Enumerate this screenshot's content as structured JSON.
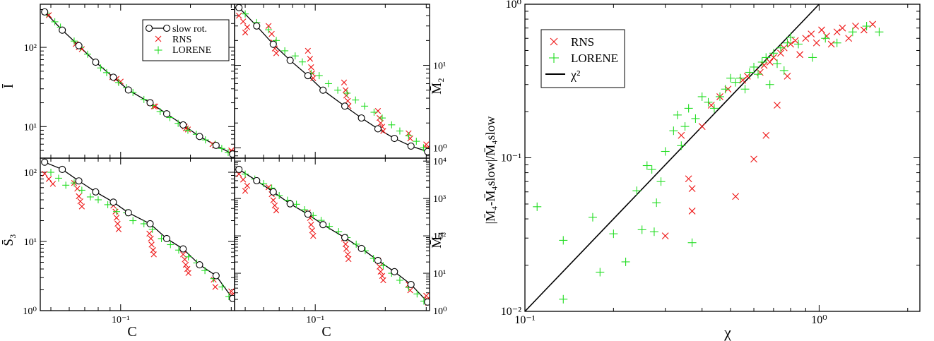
{
  "legend_left": {
    "slow": "slow rot.",
    "rns": "RNS",
    "lorene": "LORENE"
  },
  "legend_right": {
    "rns": "RNS",
    "lorene": "LORENE",
    "chi2": "χ²"
  },
  "colors": {
    "rns": "#ee1111",
    "lorene": "#22dd22",
    "curve": "#000000"
  },
  "chart_data": [
    {
      "type": "scatter",
      "panel": "top-left",
      "ylabel": "Ī",
      "xlabel": "",
      "xscale": "log",
      "yscale": "log",
      "xlim": [
        0.045,
        0.31
      ],
      "ylim": [
        4,
        350
      ],
      "yticks": [
        {
          "v": 10,
          "t": "10¹"
        },
        {
          "v": 100,
          "t": "10²"
        }
      ],
      "slow": {
        "x": [
          0.047,
          0.056,
          0.066,
          0.078,
          0.093,
          0.108,
          0.134,
          0.158,
          0.186,
          0.219,
          0.258,
          0.304
        ],
        "y": [
          280,
          165,
          105,
          65,
          42,
          29,
          20,
          14.5,
          10.5,
          7.5,
          5.8,
          4.5
        ]
      },
      "rns": {
        "x": [
          0.049,
          0.064,
          0.066,
          0.068,
          0.092,
          0.096,
          0.1,
          0.134,
          0.139,
          0.141,
          0.189,
          0.191,
          0.195,
          0.249,
          0.255,
          0.3,
          0.302,
          0.306
        ],
        "y": [
          255,
          110,
          100,
          95,
          42,
          40,
          37,
          20,
          18,
          18,
          10,
          9.5,
          9.2,
          6,
          5.8,
          5,
          4.8,
          4.6
        ]
      },
      "lorene": {
        "x": [
          0.048,
          0.052,
          0.055,
          0.063,
          0.067,
          0.072,
          0.082,
          0.087,
          0.098,
          0.106,
          0.113,
          0.126,
          0.137,
          0.148,
          0.163,
          0.177,
          0.195,
          0.212,
          0.232,
          0.256,
          0.273,
          0.291
        ],
        "y": [
          270,
          210,
          180,
          120,
          100,
          82,
          55,
          48,
          36,
          31,
          27,
          22,
          18.5,
          15.5,
          13,
          11,
          9,
          8,
          6.8,
          6,
          5.3,
          4.7
        ]
      }
    },
    {
      "type": "scatter",
      "panel": "top-right",
      "ylabel": "M̄₂",
      "xlabel": "",
      "xscale": "log",
      "yscale": "log",
      "xlim": [
        0.045,
        0.31
      ],
      "ylim": [
        0.75,
        55
      ],
      "yticks": [
        {
          "v": 1,
          "t": "10⁰"
        },
        {
          "v": 10,
          "t": "10¹"
        }
      ],
      "slow": {
        "x": [
          0.047,
          0.056,
          0.066,
          0.078,
          0.093,
          0.108,
          0.134,
          0.158,
          0.186,
          0.219,
          0.258,
          0.304
        ],
        "y": [
          50,
          30,
          18,
          11.5,
          7.5,
          5,
          3.2,
          2.3,
          1.7,
          1.3,
          1.05,
          0.9
        ]
      },
      "rns": {
        "x": [
          0.047,
          0.049,
          0.051,
          0.05,
          0.063,
          0.065,
          0.066,
          0.067,
          0.068,
          0.093,
          0.095,
          0.096,
          0.097,
          0.098,
          0.133,
          0.135,
          0.136,
          0.138,
          0.139,
          0.186,
          0.189,
          0.191,
          0.194,
          0.196,
          0.252,
          0.256,
          0.3,
          0.303,
          0.306
        ],
        "y": [
          40,
          34,
          29,
          25,
          30,
          24,
          19,
          16,
          14,
          15,
          12,
          9.5,
          8,
          7,
          6.2,
          5,
          4.3,
          3.7,
          3.2,
          2.8,
          2.3,
          2,
          1.8,
          1.6,
          1.5,
          1.3,
          1.1,
          1,
          0.95
        ]
      },
      "lorene": {
        "x": [
          0.05,
          0.056,
          0.063,
          0.068,
          0.074,
          0.082,
          0.088,
          0.096,
          0.104,
          0.114,
          0.125,
          0.137,
          0.149,
          0.163,
          0.179,
          0.194,
          0.213,
          0.231,
          0.252,
          0.272,
          0.292
        ],
        "y": [
          42,
          33,
          27,
          20,
          15,
          13,
          11,
          8,
          7.5,
          6,
          5,
          4.6,
          3.8,
          3.2,
          2.7,
          2.3,
          1.9,
          1.6,
          1.4,
          1.2,
          1.0
        ]
      }
    },
    {
      "type": "scatter",
      "panel": "bottom-left",
      "ylabel": "S̄₃",
      "xlabel": "C",
      "xscale": "log",
      "yscale": "log",
      "xlim": [
        0.045,
        0.31
      ],
      "ylim": [
        1,
        160
      ],
      "yticks": [
        {
          "v": 1,
          "t": "10⁰"
        },
        {
          "v": 10,
          "t": "10¹"
        },
        {
          "v": 100,
          "t": "10²"
        }
      ],
      "xticks": [
        {
          "v": 0.1,
          "t": "10⁻¹"
        }
      ],
      "slow": {
        "x": [
          0.047,
          0.056,
          0.066,
          0.078,
          0.093,
          0.108,
          0.134,
          0.158,
          0.186,
          0.219,
          0.258,
          0.304
        ],
        "y": [
          140,
          110,
          75,
          52,
          37,
          26,
          18,
          11,
          7.8,
          4.6,
          3.2,
          1.5
        ]
      },
      "rns": {
        "x": [
          0.047,
          0.049,
          0.051,
          0.063,
          0.065,
          0.066,
          0.067,
          0.068,
          0.093,
          0.095,
          0.096,
          0.097,
          0.098,
          0.133,
          0.135,
          0.136,
          0.138,
          0.139,
          0.186,
          0.189,
          0.191,
          0.194,
          0.196,
          0.252,
          0.256,
          0.3,
          0.303,
          0.306
        ],
        "y": [
          95,
          80,
          68,
          70,
          58,
          45,
          38,
          32,
          33,
          27,
          22,
          18,
          15,
          13,
          11,
          9,
          7.5,
          6.5,
          6.5,
          5.5,
          4.6,
          4,
          3.5,
          2.8,
          2.2,
          1.9,
          1.7,
          1.5
        ]
      },
      "lorene": {
        "x": [
          0.05,
          0.054,
          0.058,
          0.063,
          0.068,
          0.074,
          0.08,
          0.088,
          0.096,
          0.106,
          0.113,
          0.126,
          0.137,
          0.15,
          0.164,
          0.178,
          0.196,
          0.213,
          0.231,
          0.252,
          0.274,
          0.293
        ],
        "y": [
          100,
          82,
          65,
          70,
          55,
          44,
          40,
          34,
          27,
          26,
          20,
          18,
          15,
          11,
          9,
          7.5,
          6,
          4.9,
          3.8,
          2.9,
          2.2,
          1.6
        ]
      }
    },
    {
      "type": "scatter",
      "panel": "bottom-right",
      "ylabel": "M̄₄",
      "xlabel": "C",
      "xscale": "log",
      "yscale": "log",
      "xlim": [
        0.045,
        0.31
      ],
      "ylim": [
        1,
        12000
      ],
      "yticks": [
        {
          "v": 1,
          "t": "10⁰"
        },
        {
          "v": 10,
          "t": "10¹"
        },
        {
          "v": 100,
          "t": "10²"
        },
        {
          "v": 1000,
          "t": "10³"
        },
        {
          "v": 10000,
          "t": "10⁴"
        }
      ],
      "xticks": [
        {
          "v": 0.1,
          "t": "10⁻¹"
        }
      ],
      "slow": {
        "x": [
          0.047,
          0.056,
          0.066,
          0.078,
          0.093,
          0.108,
          0.134,
          0.158,
          0.186,
          0.219,
          0.258,
          0.304
        ],
        "y": [
          6000,
          3000,
          1500,
          720,
          380,
          200,
          90,
          46,
          22,
          11,
          5,
          1.7
        ]
      },
      "rns": {
        "x": [
          0.047,
          0.049,
          0.051,
          0.05,
          0.063,
          0.065,
          0.066,
          0.067,
          0.068,
          0.093,
          0.095,
          0.096,
          0.097,
          0.098,
          0.133,
          0.135,
          0.136,
          0.138,
          0.139,
          0.186,
          0.189,
          0.191,
          0.194,
          0.196,
          0.252,
          0.256,
          0.3,
          0.303,
          0.306
        ],
        "y": [
          4500,
          3200,
          2200,
          1600,
          2000,
          1300,
          900,
          650,
          480,
          420,
          300,
          200,
          140,
          100,
          85,
          60,
          45,
          32,
          24,
          22,
          15,
          11,
          8.5,
          6.5,
          5,
          3.5,
          2.5,
          2,
          1.6
        ]
      },
      "lorene": {
        "x": [
          0.05,
          0.055,
          0.06,
          0.065,
          0.07,
          0.076,
          0.083,
          0.09,
          0.098,
          0.106,
          0.115,
          0.126,
          0.137,
          0.15,
          0.164,
          0.178,
          0.196,
          0.213,
          0.231,
          0.252,
          0.274,
          0.293
        ],
        "y": [
          4500,
          3300,
          2500,
          1900,
          1200,
          900,
          700,
          500,
          350,
          260,
          180,
          130,
          90,
          60,
          40,
          25,
          16,
          10,
          6.5,
          4.2,
          2.8,
          1.8
        ]
      }
    },
    {
      "type": "scatter",
      "panel": "right",
      "ylabel": "|M̄₄-M̄₄slow|/M̄₄slow",
      "xlabel": "χ",
      "xscale": "log",
      "yscale": "log",
      "xlim": [
        0.1,
        2.2
      ],
      "ylim": [
        0.01,
        1
      ],
      "xticks": [
        {
          "v": 0.1,
          "t": "10⁻¹"
        },
        {
          "v": 1,
          "t": "10⁰"
        }
      ],
      "yticks": [
        {
          "v": 0.01,
          "t": "10⁻²"
        },
        {
          "v": 0.1,
          "t": "10⁻¹"
        },
        {
          "v": 1,
          "t": "10⁰"
        }
      ],
      "chi2": {
        "x": [
          0.1,
          1.0
        ],
        "y": [
          0.01,
          1.0
        ]
      },
      "rns": {
        "x": [
          0.3,
          0.34,
          0.36,
          0.37,
          0.37,
          0.4,
          0.43,
          0.46,
          0.49,
          0.52,
          0.55,
          0.57,
          0.6,
          0.63,
          0.65,
          0.66,
          0.68,
          0.7,
          0.72,
          0.74,
          0.76,
          0.78,
          0.8,
          0.83,
          0.86,
          0.9,
          0.94,
          0.98,
          1.02,
          1.06,
          1.1,
          1.15,
          1.2,
          1.26,
          1.33,
          1.42,
          1.52
        ],
        "y": [
          0.031,
          0.14,
          0.073,
          0.063,
          0.045,
          0.16,
          0.22,
          0.25,
          0.28,
          0.056,
          0.32,
          0.34,
          0.098,
          0.36,
          0.4,
          0.14,
          0.42,
          0.45,
          0.22,
          0.48,
          0.52,
          0.34,
          0.55,
          0.58,
          0.47,
          0.6,
          0.64,
          0.56,
          0.68,
          0.62,
          0.55,
          0.66,
          0.7,
          0.6,
          0.72,
          0.68,
          0.74
        ]
      },
      "lorene": {
        "x": [
          0.11,
          0.135,
          0.135,
          0.17,
          0.18,
          0.2,
          0.22,
          0.24,
          0.25,
          0.26,
          0.27,
          0.275,
          0.28,
          0.29,
          0.3,
          0.32,
          0.33,
          0.34,
          0.35,
          0.36,
          0.37,
          0.38,
          0.4,
          0.42,
          0.44,
          0.46,
          0.48,
          0.5,
          0.52,
          0.54,
          0.56,
          0.58,
          0.6,
          0.62,
          0.64,
          0.66,
          0.68,
          0.7,
          0.72,
          0.74,
          0.76,
          0.78,
          0.8,
          0.85,
          0.95,
          1.05,
          1.15,
          1.3,
          1.45,
          1.6
        ],
        "y": [
          0.048,
          0.029,
          0.012,
          0.041,
          0.018,
          0.032,
          0.021,
          0.061,
          0.034,
          0.089,
          0.084,
          0.033,
          0.051,
          0.07,
          0.11,
          0.15,
          0.19,
          0.12,
          0.16,
          0.21,
          0.028,
          0.18,
          0.25,
          0.23,
          0.21,
          0.25,
          0.28,
          0.33,
          0.31,
          0.33,
          0.28,
          0.36,
          0.39,
          0.35,
          0.42,
          0.45,
          0.3,
          0.48,
          0.41,
          0.52,
          0.37,
          0.56,
          0.61,
          0.55,
          0.45,
          0.6,
          0.56,
          0.66,
          0.72,
          0.66
        ]
      }
    }
  ]
}
